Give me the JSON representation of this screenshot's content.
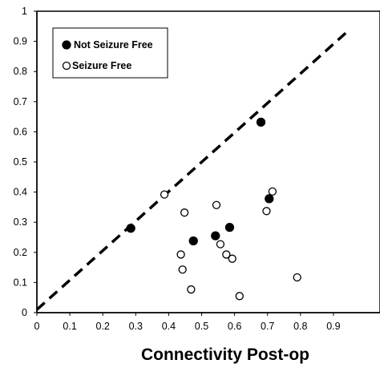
{
  "chart_data": {
    "type": "scatter",
    "title": "",
    "xlabel": "Connectivity Post-op",
    "ylabel": "",
    "xlim": [
      0,
      0.95
    ],
    "ylim": [
      0,
      1.0
    ],
    "xticks": [
      "0",
      "0.1",
      "0.2",
      "0.3",
      "0.4",
      "0.5",
      "0.6",
      "0.7",
      "0.8",
      "0.9"
    ],
    "yticks": [
      "0",
      "0.1",
      "0.2",
      "0.3",
      "0.4",
      "0.5",
      "0.6",
      "0.7",
      "0.8",
      "0.9",
      "1"
    ],
    "grid": false,
    "legend_placement": "top-left",
    "reference_line": {
      "style": "dashed",
      "points": [
        [
          0,
          0.01
        ],
        [
          0.95,
          0.94
        ]
      ]
    },
    "series": [
      {
        "name": "Not Seizure Free",
        "marker": "filled-circle",
        "color": "#000000",
        "points": [
          [
            0.285,
            0.28
          ],
          [
            0.475,
            0.238
          ],
          [
            0.542,
            0.255
          ],
          [
            0.585,
            0.283
          ],
          [
            0.68,
            0.632
          ],
          [
            0.705,
            0.378
          ]
        ]
      },
      {
        "name": "Seizure Free",
        "marker": "open-circle",
        "color": "#000000",
        "points": [
          [
            0.387,
            0.392
          ],
          [
            0.448,
            0.332
          ],
          [
            0.545,
            0.357
          ],
          [
            0.437,
            0.193
          ],
          [
            0.442,
            0.143
          ],
          [
            0.468,
            0.077
          ],
          [
            0.557,
            0.227
          ],
          [
            0.575,
            0.193
          ],
          [
            0.593,
            0.179
          ],
          [
            0.615,
            0.055
          ],
          [
            0.697,
            0.337
          ],
          [
            0.715,
            0.402
          ],
          [
            0.79,
            0.117
          ]
        ]
      }
    ]
  }
}
